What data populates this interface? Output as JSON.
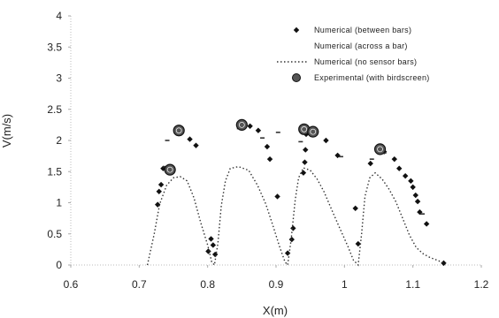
{
  "chart_data": {
    "type": "scatter",
    "xlabel": "X(m)",
    "ylabel": "V(m/s)",
    "xlim": [
      0.6,
      1.2
    ],
    "ylim": [
      0,
      4
    ],
    "x_ticks": [
      "0.6",
      "0.7",
      "0.8",
      "0.9",
      "1",
      "1.1",
      "1.2"
    ],
    "y_ticks": [
      "0",
      "0.5",
      "1",
      "1.5",
      "2",
      "2.5",
      "3",
      "3.5",
      "4"
    ],
    "grid": false,
    "legend_position": "top-right",
    "series": [
      {
        "name": "Numerical (between bars)",
        "marker": "diamond",
        "color": "#111111",
        "points": [
          [
            0.727,
            0.97
          ],
          [
            0.729,
            1.18
          ],
          [
            0.732,
            1.29
          ],
          [
            0.735,
            1.55
          ],
          [
            0.744,
            1.52
          ],
          [
            0.774,
            2.02
          ],
          [
            0.783,
            1.92
          ],
          [
            0.801,
            0.22
          ],
          [
            0.805,
            0.42
          ],
          [
            0.808,
            0.32
          ],
          [
            0.811,
            0.17
          ],
          [
            0.862,
            2.23
          ],
          [
            0.874,
            2.16
          ],
          [
            0.887,
            1.9
          ],
          [
            0.891,
            1.7
          ],
          [
            0.902,
            1.1
          ],
          [
            0.917,
            0.19
          ],
          [
            0.923,
            0.41
          ],
          [
            0.925,
            0.59
          ],
          [
            0.94,
            1.48
          ],
          [
            0.942,
            1.65
          ],
          [
            0.943,
            1.85
          ],
          [
            0.944,
            2.1
          ],
          [
            0.973,
            2.0
          ],
          [
            0.99,
            1.76
          ],
          [
            1.016,
            0.91
          ],
          [
            1.02,
            0.34
          ],
          [
            1.038,
            1.63
          ],
          [
            1.058,
            1.82
          ],
          [
            1.073,
            1.7
          ],
          [
            1.08,
            1.55
          ],
          [
            1.089,
            1.43
          ],
          [
            1.097,
            1.35
          ],
          [
            1.1,
            1.25
          ],
          [
            1.104,
            1.12
          ],
          [
            1.107,
            1.02
          ],
          [
            1.11,
            0.85
          ],
          [
            1.12,
            0.66
          ],
          [
            1.145,
            0.03
          ]
        ]
      },
      {
        "name": "Numerical (across a bar)",
        "marker": "dash",
        "color": "#333333",
        "points": [
          [
            0.738,
            1.58
          ],
          [
            0.741,
            2.0
          ],
          [
            0.846,
            2.19
          ],
          [
            0.88,
            2.04
          ],
          [
            0.903,
            2.13
          ],
          [
            0.936,
            1.98
          ],
          [
            0.995,
            1.74
          ],
          [
            1.04,
            1.7
          ],
          [
            1.058,
            1.8
          ],
          [
            1.114,
            0.82
          ]
        ]
      },
      {
        "name": "Numerical (no sensor bars)",
        "marker": "dotted-line",
        "color": "#333333",
        "points": [
          [
            0.712,
            0.0
          ],
          [
            0.722,
            0.5
          ],
          [
            0.73,
            0.98
          ],
          [
            0.74,
            1.28
          ],
          [
            0.75,
            1.4
          ],
          [
            0.76,
            1.42
          ],
          [
            0.77,
            1.35
          ],
          [
            0.78,
            1.08
          ],
          [
            0.79,
            0.68
          ],
          [
            0.8,
            0.32
          ],
          [
            0.806,
            0.05
          ],
          [
            0.81,
            0.0
          ],
          [
            0.815,
            0.35
          ],
          [
            0.82,
            0.95
          ],
          [
            0.826,
            1.35
          ],
          [
            0.833,
            1.55
          ],
          [
            0.845,
            1.58
          ],
          [
            0.86,
            1.52
          ],
          [
            0.873,
            1.28
          ],
          [
            0.885,
            0.98
          ],
          [
            0.895,
            0.65
          ],
          [
            0.905,
            0.3
          ],
          [
            0.913,
            0.05
          ],
          [
            0.917,
            0.0
          ],
          [
            0.922,
            0.4
          ],
          [
            0.928,
            1.05
          ],
          [
            0.933,
            1.4
          ],
          [
            0.94,
            1.56
          ],
          [
            0.95,
            1.52
          ],
          [
            0.96,
            1.38
          ],
          [
            0.97,
            1.18
          ],
          [
            0.98,
            0.92
          ],
          [
            0.992,
            0.62
          ],
          [
            1.005,
            0.3
          ],
          [
            1.013,
            0.08
          ],
          [
            1.02,
            0.0
          ],
          [
            1.025,
            0.5
          ],
          [
            1.03,
            1.1
          ],
          [
            1.037,
            1.4
          ],
          [
            1.045,
            1.48
          ],
          [
            1.055,
            1.38
          ],
          [
            1.065,
            1.22
          ],
          [
            1.075,
            1.02
          ],
          [
            1.085,
            0.75
          ],
          [
            1.095,
            0.48
          ],
          [
            1.105,
            0.28
          ],
          [
            1.115,
            0.18
          ],
          [
            1.125,
            0.12
          ],
          [
            1.135,
            0.08
          ],
          [
            1.148,
            0.02
          ]
        ]
      },
      {
        "name": "Experimental (with birdscreen)",
        "marker": "circle",
        "color": "#111111",
        "points": [
          [
            0.745,
            1.53
          ],
          [
            0.758,
            2.16
          ],
          [
            0.85,
            2.25
          ],
          [
            0.941,
            2.18
          ],
          [
            0.954,
            2.14
          ],
          [
            1.052,
            1.86
          ]
        ]
      }
    ]
  }
}
